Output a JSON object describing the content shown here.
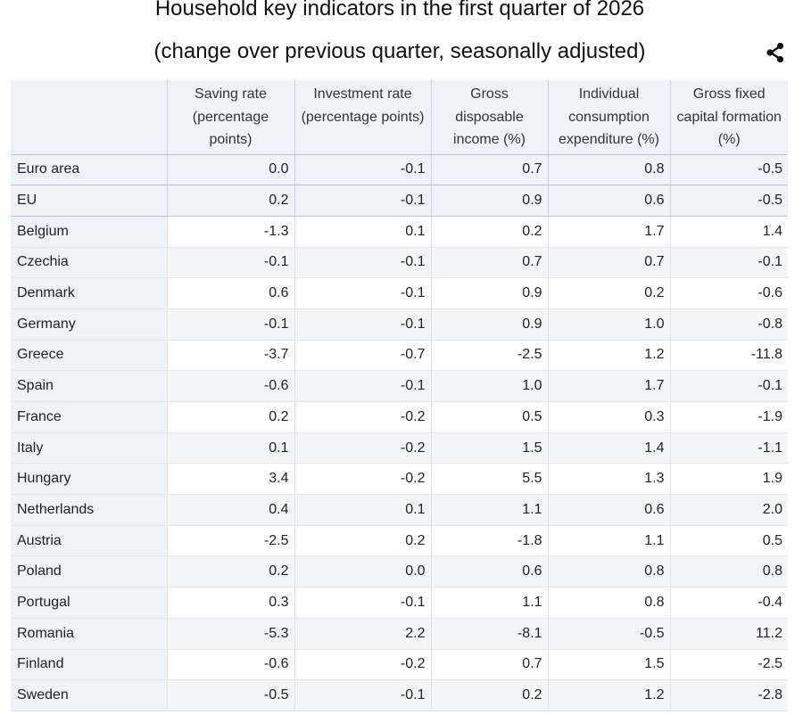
{
  "title_line1": "Household key indicators in the first quarter of 2026",
  "title_line2": "(change over previous quarter, seasonally adjusted)",
  "share_icon": "share-icon",
  "chart_data": {
    "type": "table",
    "title": "Household key indicators in the first quarter of 2026 (change over previous quarter, seasonally adjusted)",
    "columns": [
      "",
      "Saving rate (percentage points)",
      "Investment rate (percentage points)",
      "Gross disposable income (%)",
      "Individual consumption expenditure (%)",
      "Gross fixed capital formation (%)"
    ],
    "rows": [
      {
        "name": "Euro area",
        "values": [
          "0.0",
          "-0.1",
          "0.7",
          "0.8",
          "-0.5"
        ]
      },
      {
        "name": "EU",
        "values": [
          "0.2",
          "-0.1",
          "0.9",
          "0.6",
          "-0.5"
        ]
      },
      {
        "name": "Belgium",
        "values": [
          "-1.3",
          "0.1",
          "0.2",
          "1.7",
          "1.4"
        ]
      },
      {
        "name": "Czechia",
        "values": [
          "-0.1",
          "-0.1",
          "0.7",
          "0.7",
          "-0.1"
        ]
      },
      {
        "name": "Denmark",
        "values": [
          "0.6",
          "-0.1",
          "0.9",
          "0.2",
          "-0.6"
        ]
      },
      {
        "name": "Germany",
        "values": [
          "-0.1",
          "-0.1",
          "0.9",
          "1.0",
          "-0.8"
        ]
      },
      {
        "name": "Greece",
        "values": [
          "-3.7",
          "-0.7",
          "-2.5",
          "1.2",
          "-11.8"
        ]
      },
      {
        "name": "Spain",
        "values": [
          "-0.6",
          "-0.1",
          "1.0",
          "1.7",
          "-0.1"
        ]
      },
      {
        "name": "France",
        "values": [
          "0.2",
          "-0.2",
          "0.5",
          "0.3",
          "-1.9"
        ]
      },
      {
        "name": "Italy",
        "values": [
          "0.1",
          "-0.2",
          "1.5",
          "1.4",
          "-1.1"
        ]
      },
      {
        "name": "Hungary",
        "values": [
          "3.4",
          "-0.2",
          "5.5",
          "1.3",
          "1.9"
        ]
      },
      {
        "name": "Netherlands",
        "values": [
          "0.4",
          "0.1",
          "1.1",
          "0.6",
          "2.0"
        ]
      },
      {
        "name": "Austria",
        "values": [
          "-2.5",
          "0.2",
          "-1.8",
          "1.1",
          "0.5"
        ]
      },
      {
        "name": "Poland",
        "values": [
          "0.2",
          "0.0",
          "0.6",
          "0.8",
          "0.8"
        ]
      },
      {
        "name": "Portugal",
        "values": [
          "0.3",
          "-0.1",
          "1.1",
          "0.8",
          "-0.4"
        ]
      },
      {
        "name": "Romania",
        "values": [
          "-5.3",
          "2.2",
          "-8.1",
          "-0.5",
          "11.2"
        ]
      },
      {
        "name": "Finland",
        "values": [
          "-0.6",
          "-0.2",
          "0.7",
          "1.5",
          "-2.5"
        ]
      },
      {
        "name": "Sweden",
        "values": [
          "-0.5",
          "-0.1",
          "0.2",
          "1.2",
          "-2.8"
        ]
      }
    ]
  }
}
